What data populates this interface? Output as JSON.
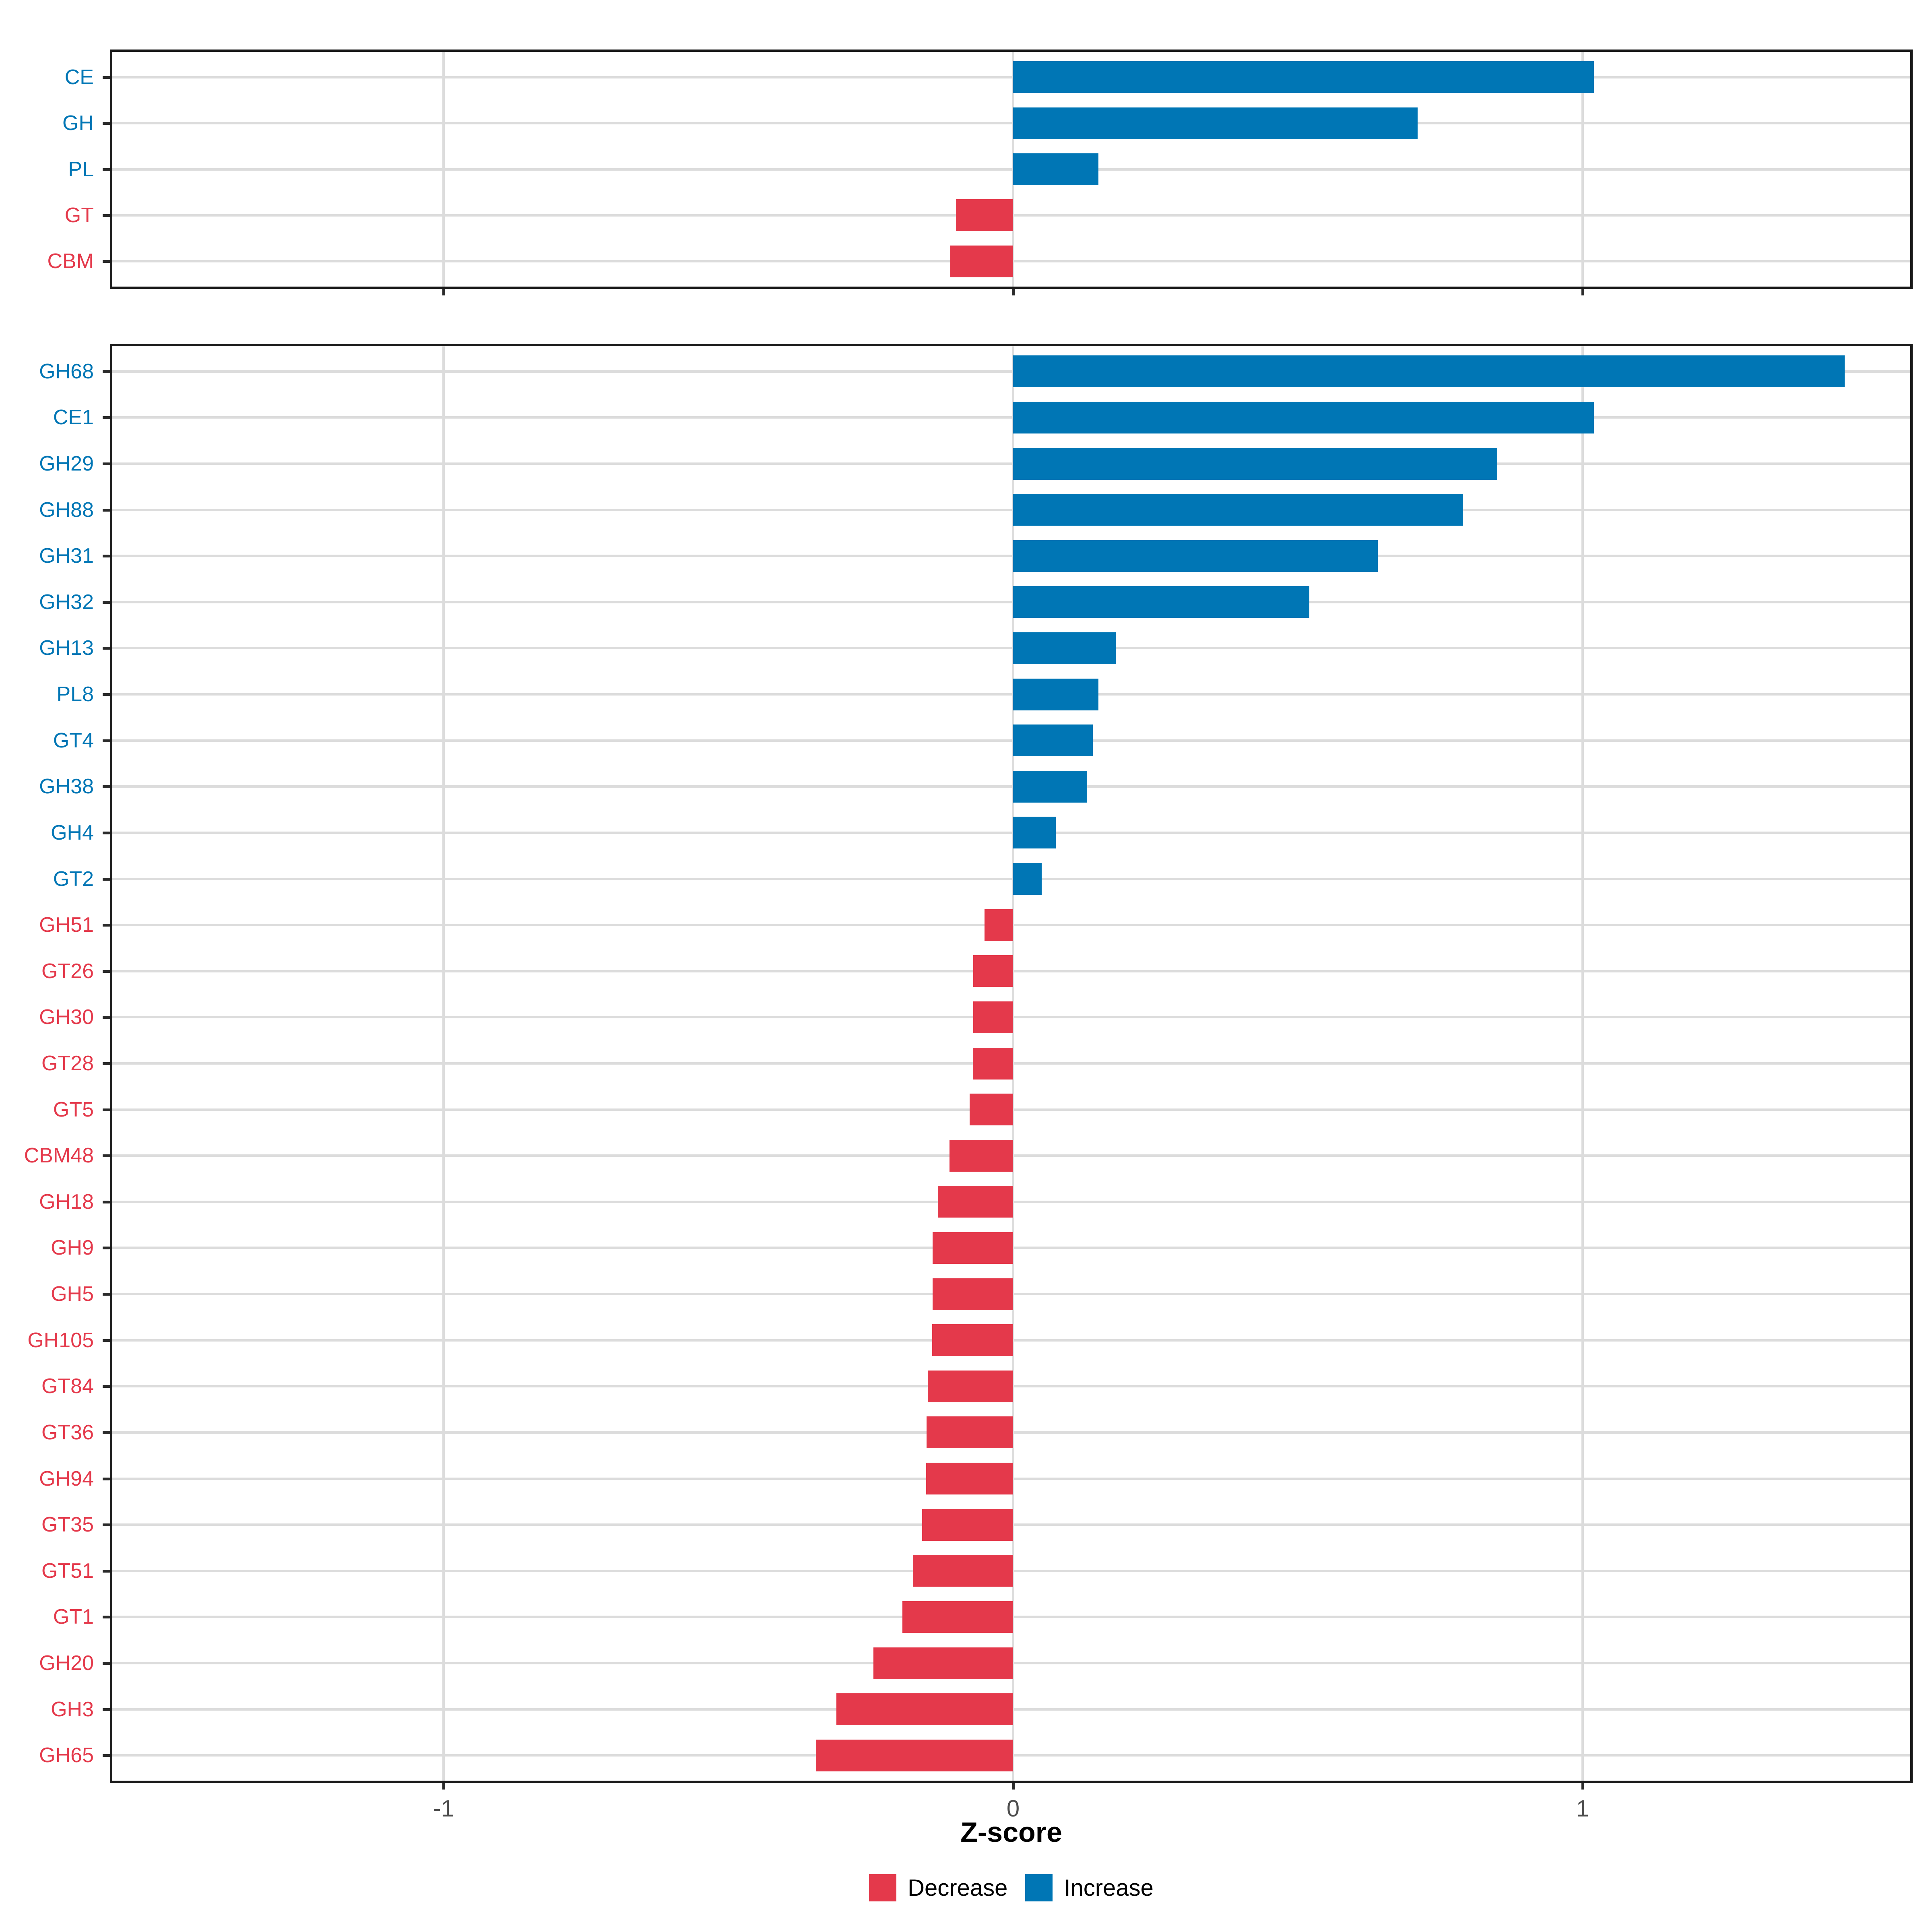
{
  "chart_data": [
    {
      "id": "family_level",
      "type": "bar",
      "orientation": "horizontal",
      "categories": [
        "CE",
        "GH",
        "PL",
        "GT",
        "CBM"
      ],
      "values": [
        1.02,
        0.71,
        0.15,
        -0.1,
        -0.11
      ],
      "title": "",
      "xlabel": "Z-score",
      "ylabel": "",
      "xlim": [
        -1.6,
        1.6
      ],
      "grid": "major vertical at -1,0,1 and horizontal per category",
      "legend_position": "none"
    },
    {
      "id": "subfamily_level",
      "type": "bar",
      "orientation": "horizontal",
      "categories": [
        "GH68",
        "CE1",
        "GH29",
        "GH88",
        "GH31",
        "GH32",
        "GH13",
        "PL8",
        "GT4",
        "GH38",
        "GH4",
        "GT2",
        "GH51",
        "GT26",
        "GH30",
        "GT28",
        "GT5",
        "CBM48",
        "GH18",
        "GH9",
        "GH5",
        "GH105",
        "GT84",
        "GT36",
        "GH94",
        "GT35",
        "GT51",
        "GT1",
        "GH20",
        "GH3",
        "GH65"
      ],
      "values": [
        1.46,
        1.02,
        0.85,
        0.79,
        0.64,
        0.52,
        0.18,
        0.15,
        0.14,
        0.13,
        0.075,
        0.05,
        -0.05,
        -0.07,
        -0.07,
        -0.071,
        -0.076,
        -0.112,
        -0.132,
        -0.141,
        -0.141,
        -0.142,
        -0.15,
        -0.152,
        -0.153,
        -0.16,
        -0.176,
        -0.194,
        -0.245,
        -0.31,
        -0.346
      ],
      "title": "",
      "xlabel": "Z-score",
      "ylabel": "",
      "xlim": [
        -1.6,
        1.6
      ],
      "grid": "major vertical at -1,0,1 and horizontal per category",
      "legend_position": "bottom"
    }
  ],
  "axis": {
    "xlabel": "Z-score",
    "tick_labels": [
      "-1",
      "0",
      "1"
    ],
    "tick_values": [
      -1,
      0,
      1
    ]
  },
  "legend": {
    "items": [
      {
        "label": "Decrease",
        "color": "#E4394B"
      },
      {
        "label": "Increase",
        "color": "#0076B5"
      }
    ]
  },
  "colors": {
    "increase": "#0076B5",
    "decrease": "#E4394B",
    "grid": "#DCDCDC",
    "axis_text": "#4D4D4D",
    "border": "#1A1A1A",
    "background": "#FFFFFF"
  }
}
